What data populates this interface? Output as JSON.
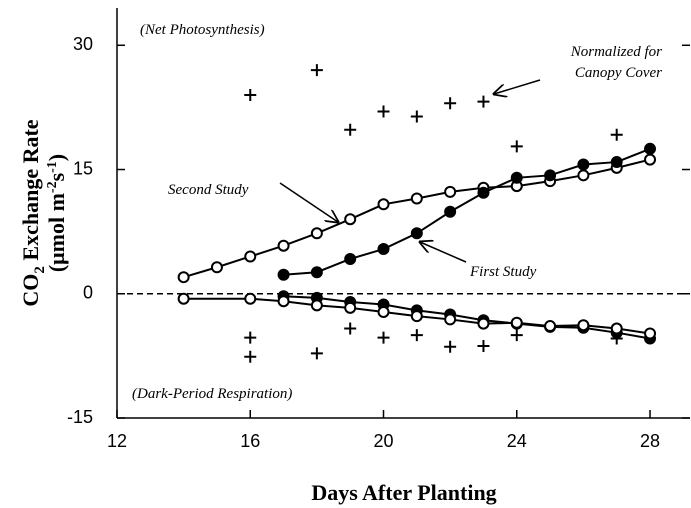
{
  "chart_data": {
    "type": "line",
    "x_label": "Days After Planting",
    "y_label": [
      "CO",
      "2",
      " Exchange Rate"
    ],
    "y_unit": [
      "(μmol m",
      "-2",
      "s",
      "-1",
      ")"
    ],
    "annotations": {
      "net": "(Net Photosynthesis)",
      "normalized": [
        "Normalized for",
        "Canopy Cover"
      ],
      "second": "Second Study",
      "first": "First Study",
      "dark": "(Dark-Period Respiration)"
    },
    "xlim": [
      12,
      29.2
    ],
    "xticks": [
      12,
      16,
      20,
      24,
      28
    ],
    "ylim": [
      -15,
      34.5
    ],
    "yticks": [
      -15,
      0,
      15,
      30
    ],
    "zero_line": "dashed",
    "series": [
      {
        "marker": "open",
        "line": true,
        "color": "#000000",
        "x": [
          14,
          15,
          16,
          17,
          18,
          19,
          20,
          21,
          22,
          23,
          24,
          25,
          26,
          27,
          28
        ],
        "values": [
          2.0,
          3.2,
          4.5,
          5.8,
          7.3,
          9.0,
          10.8,
          11.5,
          12.3,
          12.8,
          13.0,
          13.6,
          14.3,
          15.2,
          16.2
        ]
      },
      {
        "marker": "filled",
        "line": true,
        "color": "#000000",
        "x": [
          17,
          18,
          19,
          20,
          21,
          22,
          23,
          24,
          25,
          26,
          27,
          28
        ],
        "values": [
          2.3,
          2.6,
          4.2,
          5.4,
          7.3,
          9.9,
          12.2,
          14.0,
          14.3,
          15.6,
          15.9,
          17.5
        ]
      },
      {
        "marker": "filled",
        "line": true,
        "color": "#000000",
        "x": [
          17,
          18,
          19,
          20,
          21,
          22,
          23,
          24,
          25,
          26,
          27,
          28
        ],
        "values": [
          -0.3,
          -0.5,
          -1.0,
          -1.3,
          -2.0,
          -2.5,
          -3.2,
          -3.6,
          -4.0,
          -4.1,
          -4.7,
          -5.4
        ]
      },
      {
        "marker": "open",
        "line": true,
        "color": "#000000",
        "x": [
          14,
          16,
          17,
          18,
          19,
          20,
          21,
          22,
          23,
          24,
          25,
          26,
          27,
          28
        ],
        "values": [
          -0.6,
          -0.6,
          -0.9,
          -1.4,
          -1.7,
          -2.2,
          -2.7,
          -3.1,
          -3.6,
          -3.5,
          -3.9,
          -3.8,
          -4.2,
          -4.8
        ]
      },
      {
        "marker": "plus",
        "line": false,
        "color": "#000000",
        "x": [
          16,
          16,
          16,
          18,
          18,
          19,
          19,
          20,
          20,
          21,
          21,
          22,
          22,
          23,
          23,
          24,
          24,
          27,
          27
        ],
        "values": [
          24,
          -5.3,
          -7.6,
          27,
          -7.2,
          19.8,
          -4.2,
          22,
          -5.3,
          21.4,
          -5,
          23,
          -6.4,
          23.2,
          -6.3,
          17.8,
          -5,
          19.2,
          -5.4
        ]
      }
    ]
  }
}
